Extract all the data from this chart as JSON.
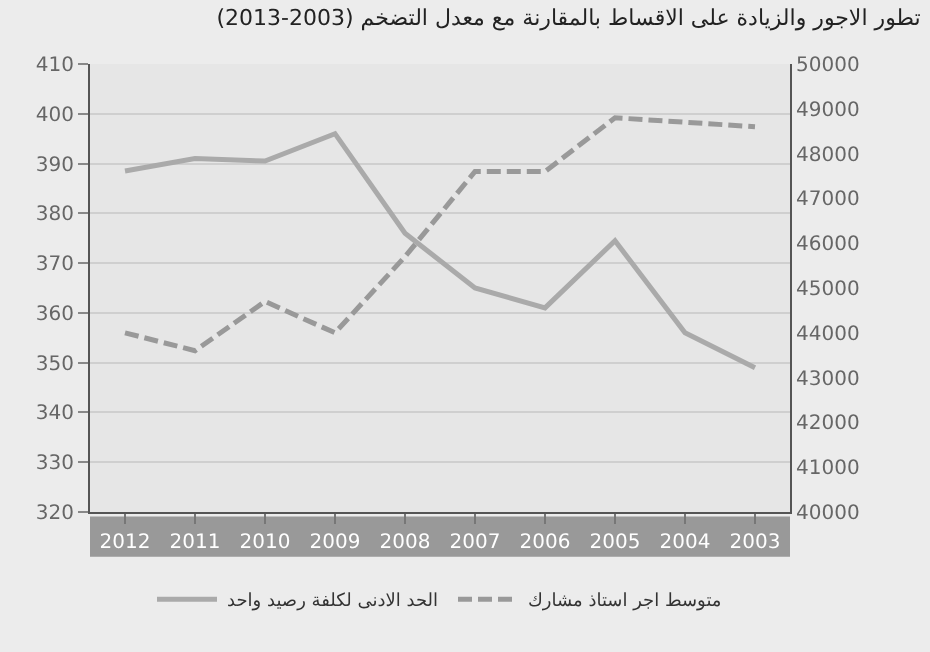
{
  "chart_data": {
    "type": "line",
    "title": "تطور الاجور والزيادة على الاقساط بالمقارنة مع معدل التضخم (2003-2013)",
    "categories": [
      "2012",
      "2011",
      "2010",
      "2009",
      "2008",
      "2007",
      "2006",
      "2005",
      "2004",
      "2003"
    ],
    "series": [
      {
        "name": "الحد الادنى لكلفة رصيد واحد",
        "color": "#aaaaaa",
        "line_style": "solid",
        "values": [
          388.5,
          391,
          390.5,
          396,
          376,
          365,
          361,
          374.5,
          356,
          349
        ]
      },
      {
        "name": "متوسط اجر استاذ مشارك",
        "color": "#999999",
        "line_style": "dashed",
        "axis": "y2",
        "values": [
          44000,
          43600,
          44700,
          44000,
          45700,
          47600,
          47600,
          48800,
          48700,
          48600
        ]
      }
    ],
    "ylim": [
      320,
      410
    ],
    "yticks": [
      320,
      330,
      340,
      350,
      360,
      370,
      380,
      390,
      400,
      410
    ],
    "y2lim": [
      40000,
      50000
    ],
    "y2ticks": [
      40000,
      41000,
      42000,
      43000,
      44000,
      45000,
      46000,
      47000,
      48000,
      49000,
      50000
    ],
    "grid": "y",
    "legend": "bottom",
    "marker": "none"
  }
}
